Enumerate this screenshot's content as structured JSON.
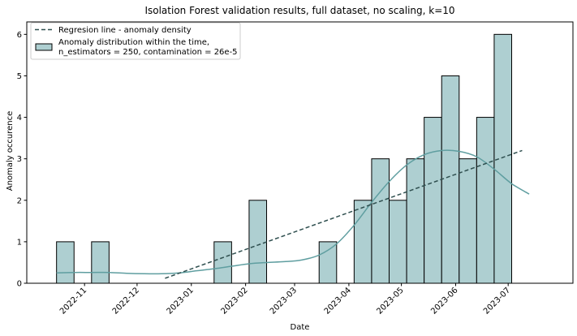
{
  "chart_data": {
    "type": "bar",
    "title": "Isolation Forest validation results, full dataset, no scaling, k=10",
    "xlabel": "Date",
    "ylabel": "Anomaly occurence",
    "ylim": [
      0,
      6.3
    ],
    "yticks": [
      0,
      1,
      2,
      3,
      4,
      5,
      6
    ],
    "xlim": [
      "2022-09-29",
      "2023-08-07"
    ],
    "xticks": [
      {
        "date": "2022-11-01",
        "label": "2022-11"
      },
      {
        "date": "2022-12-01",
        "label": "2022-12"
      },
      {
        "date": "2023-01-01",
        "label": "2023-01"
      },
      {
        "date": "2023-02-01",
        "label": "2023-02"
      },
      {
        "date": "2023-03-01",
        "label": "2023-03"
      },
      {
        "date": "2023-04-01",
        "label": "2023-04"
      },
      {
        "date": "2023-05-01",
        "label": "2023-05"
      },
      {
        "date": "2023-06-01",
        "label": "2023-06"
      },
      {
        "date": "2023-07-01",
        "label": "2023-07"
      }
    ],
    "grid": false,
    "legend_position": "top-left",
    "series": [
      {
        "name": "Anomaly distribution within the time,\nn_estimators = 250, contamination = 26e-5",
        "type": "histogram",
        "color": "#aecfd1",
        "edge_color": "#000000",
        "bins": [
          {
            "start": "2022-10-16",
            "end": "2022-10-26",
            "count": 1
          },
          {
            "start": "2022-10-26",
            "end": "2022-11-05",
            "count": 0
          },
          {
            "start": "2022-11-05",
            "end": "2022-11-15",
            "count": 1
          },
          {
            "start": "2022-11-15",
            "end": "2022-11-25",
            "count": 0
          },
          {
            "start": "2022-11-25",
            "end": "2022-12-05",
            "count": 0
          },
          {
            "start": "2022-12-05",
            "end": "2022-12-15",
            "count": 0
          },
          {
            "start": "2022-12-15",
            "end": "2022-12-25",
            "count": 0
          },
          {
            "start": "2022-12-25",
            "end": "2023-01-04",
            "count": 0
          },
          {
            "start": "2023-01-04",
            "end": "2023-01-14",
            "count": 0
          },
          {
            "start": "2023-01-14",
            "end": "2023-01-24",
            "count": 1
          },
          {
            "start": "2023-01-24",
            "end": "2023-02-03",
            "count": 0
          },
          {
            "start": "2023-02-03",
            "end": "2023-02-13",
            "count": 2
          },
          {
            "start": "2023-02-13",
            "end": "2023-02-23",
            "count": 0
          },
          {
            "start": "2023-02-23",
            "end": "2023-03-05",
            "count": 0
          },
          {
            "start": "2023-03-05",
            "end": "2023-03-15",
            "count": 0
          },
          {
            "start": "2023-03-15",
            "end": "2023-03-25",
            "count": 1
          },
          {
            "start": "2023-03-25",
            "end": "2023-04-04",
            "count": 0
          },
          {
            "start": "2023-04-04",
            "end": "2023-04-14",
            "count": 2
          },
          {
            "start": "2023-04-14",
            "end": "2023-04-24",
            "count": 3
          },
          {
            "start": "2023-04-24",
            "end": "2023-05-04",
            "count": 2
          },
          {
            "start": "2023-05-04",
            "end": "2023-05-14",
            "count": 3
          },
          {
            "start": "2023-05-14",
            "end": "2023-05-24",
            "count": 4
          },
          {
            "start": "2023-05-24",
            "end": "2023-06-03",
            "count": 5
          },
          {
            "start": "2023-06-03",
            "end": "2023-06-13",
            "count": 3
          },
          {
            "start": "2023-06-13",
            "end": "2023-06-23",
            "count": 4
          },
          {
            "start": "2023-06-23",
            "end": "2023-07-03",
            "count": 6
          }
        ]
      },
      {
        "name": "",
        "type": "kde-line",
        "color": "#5f9ea0",
        "points": [
          {
            "x": "2022-10-16",
            "y": 0.25
          },
          {
            "x": "2022-10-26",
            "y": 0.26
          },
          {
            "x": "2022-11-05",
            "y": 0.26
          },
          {
            "x": "2022-11-15",
            "y": 0.26
          },
          {
            "x": "2022-11-25",
            "y": 0.24
          },
          {
            "x": "2022-12-05",
            "y": 0.23
          },
          {
            "x": "2022-12-15",
            "y": 0.23
          },
          {
            "x": "2022-12-25",
            "y": 0.25
          },
          {
            "x": "2023-01-04",
            "y": 0.3
          },
          {
            "x": "2023-01-14",
            "y": 0.35
          },
          {
            "x": "2023-01-24",
            "y": 0.41
          },
          {
            "x": "2023-02-03",
            "y": 0.47
          },
          {
            "x": "2023-02-13",
            "y": 0.5
          },
          {
            "x": "2023-02-23",
            "y": 0.52
          },
          {
            "x": "2023-03-05",
            "y": 0.56
          },
          {
            "x": "2023-03-15",
            "y": 0.68
          },
          {
            "x": "2023-03-25",
            "y": 0.95
          },
          {
            "x": "2023-04-04",
            "y": 1.4
          },
          {
            "x": "2023-04-14",
            "y": 1.95
          },
          {
            "x": "2023-04-24",
            "y": 2.45
          },
          {
            "x": "2023-05-04",
            "y": 2.85
          },
          {
            "x": "2023-05-14",
            "y": 3.1
          },
          {
            "x": "2023-05-24",
            "y": 3.2
          },
          {
            "x": "2023-06-03",
            "y": 3.18
          },
          {
            "x": "2023-06-13",
            "y": 3.05
          },
          {
            "x": "2023-06-23",
            "y": 2.75
          },
          {
            "x": "2023-07-03",
            "y": 2.4
          },
          {
            "x": "2023-07-13",
            "y": 2.15
          }
        ]
      },
      {
        "name": "Regresion line - anomaly density",
        "type": "dashed-line",
        "color": "#2f4f4f",
        "points": [
          {
            "x": "2022-12-17",
            "y": 0.12
          },
          {
            "x": "2023-07-09",
            "y": 3.2
          }
        ]
      }
    ]
  }
}
